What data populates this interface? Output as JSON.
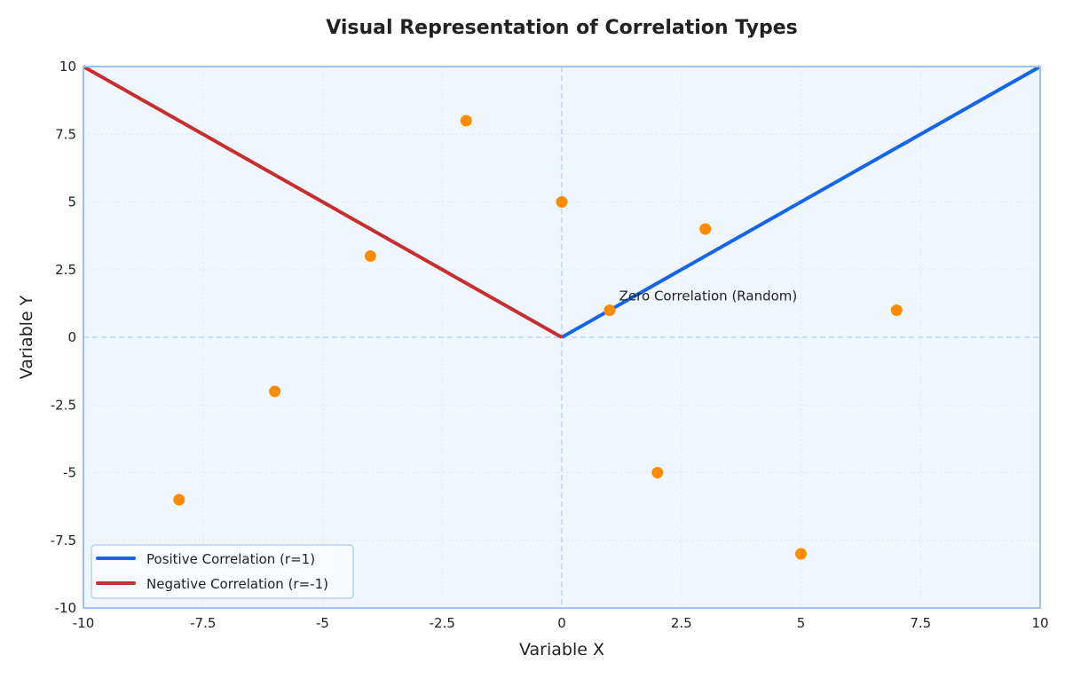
{
  "chart_data": {
    "type": "line",
    "title": "Visual Representation of Correlation Types",
    "xlabel": "Variable X",
    "ylabel": "Variable Y",
    "xlim": [
      -10,
      10
    ],
    "ylim": [
      -10,
      10
    ],
    "xticks": [
      -10,
      -7.5,
      -5,
      -2.5,
      0,
      2.5,
      5,
      7.5,
      10
    ],
    "yticks": [
      -10,
      -7.5,
      -5,
      -2.5,
      0,
      2.5,
      5,
      7.5,
      10
    ],
    "grid": true,
    "legend_placement": "lower-left",
    "colors": {
      "background": "#f0f6fe",
      "frame": "#9fc0f5",
      "positive": "#1565e8",
      "negative": "#c62f2f",
      "scatter": "#ff8c00",
      "reference": "#bcd4f7"
    },
    "series": [
      {
        "name": "Positive Correlation (r=1)",
        "kind": "line",
        "x": [
          0,
          10
        ],
        "y": [
          0,
          10
        ]
      },
      {
        "name": "Negative Correlation (r=-1)",
        "kind": "line",
        "x": [
          -10,
          0
        ],
        "y": [
          10,
          0
        ]
      },
      {
        "kind": "scatter",
        "x": [
          -8,
          -6,
          -4,
          -2,
          0,
          1,
          2,
          3,
          5,
          7
        ],
        "y": [
          -6,
          -2,
          3,
          8,
          5,
          1,
          -5,
          4,
          -8,
          1
        ]
      }
    ],
    "annotations": [
      {
        "text": "Zero Correlation (Random)",
        "x": 1.2,
        "y": 1.5
      }
    ]
  }
}
